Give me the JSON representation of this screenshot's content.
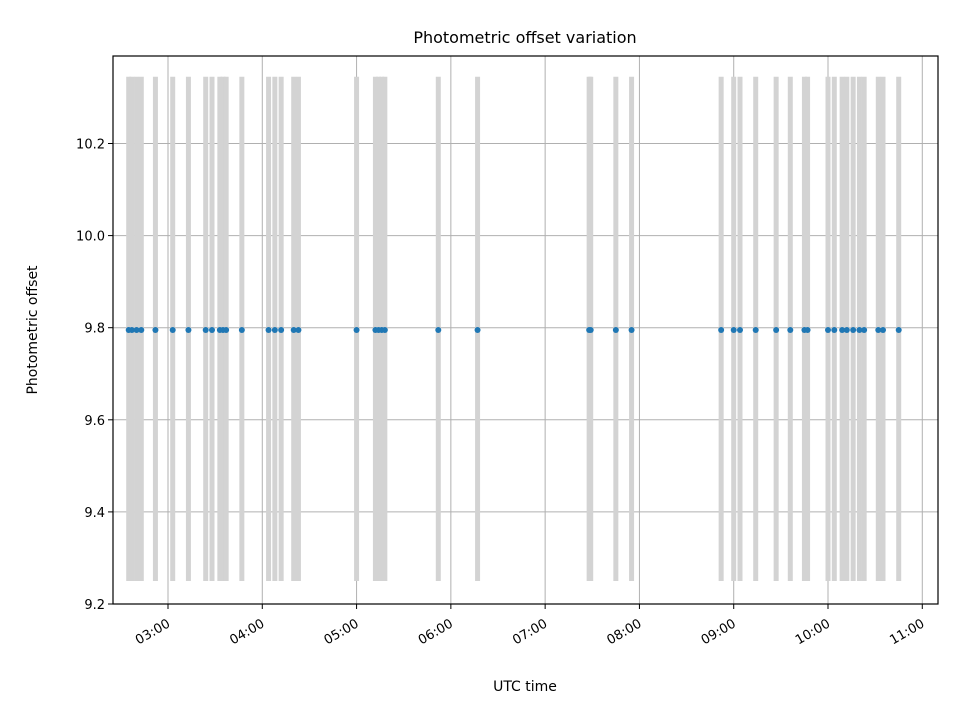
{
  "chart_data": {
    "type": "scatter",
    "title": "Photometric offset variation",
    "xlabel": "UTC time",
    "ylabel": "Photometric offset",
    "xlim": [
      "02:25",
      "11:10"
    ],
    "ylim": [
      9.2,
      10.39
    ],
    "grid": true,
    "x_ticks": [
      "03:00",
      "04:00",
      "05:00",
      "06:00",
      "07:00",
      "08:00",
      "09:00",
      "10:00",
      "11:00"
    ],
    "y_ticks": [
      "9.2",
      "9.4",
      "9.6",
      "9.8",
      "10.0",
      "10.2"
    ],
    "error_bar_range": [
      9.25,
      10.345
    ],
    "colors": {
      "marker": "#1f77b4",
      "error_bar": "#d3d3d3",
      "grid": "#b0b0b0"
    },
    "series": [
      {
        "x": [
          "02:35",
          "02:37",
          "02:40",
          "02:43",
          "02:52",
          "03:03",
          "03:13",
          "03:24",
          "03:28",
          "03:33",
          "03:35",
          "03:37",
          "03:47",
          "04:04",
          "04:08",
          "04:12",
          "04:20",
          "04:23",
          "05:00",
          "05:12",
          "05:14",
          "05:16",
          "05:18",
          "05:52",
          "06:17",
          "07:28",
          "07:29",
          "07:45",
          "07:55",
          "08:52",
          "09:00",
          "09:04",
          "09:14",
          "09:27",
          "09:36",
          "09:45",
          "09:47",
          "10:00",
          "10:04",
          "10:09",
          "10:12",
          "10:16",
          "10:20",
          "10:23",
          "10:32",
          "10:35",
          "10:45"
        ],
        "values": [
          9.795,
          9.795,
          9.795,
          9.795,
          9.795,
          9.795,
          9.795,
          9.795,
          9.795,
          9.795,
          9.795,
          9.795,
          9.795,
          9.795,
          9.795,
          9.795,
          9.795,
          9.795,
          9.795,
          9.795,
          9.795,
          9.795,
          9.795,
          9.795,
          9.795,
          9.795,
          9.795,
          9.795,
          9.795,
          9.795,
          9.795,
          9.795,
          9.795,
          9.795,
          9.795,
          9.795,
          9.795,
          9.795,
          9.795,
          9.795,
          9.795,
          9.795,
          9.795,
          9.795,
          9.795,
          9.795,
          9.795
        ]
      }
    ]
  }
}
